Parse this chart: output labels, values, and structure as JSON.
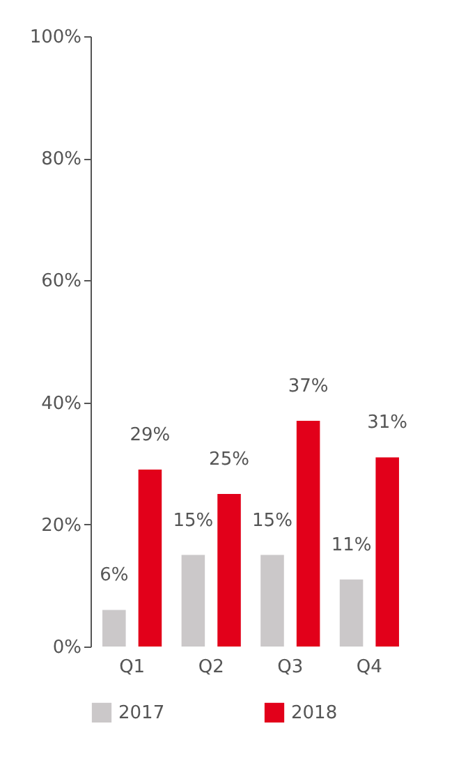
{
  "chart_data": {
    "type": "bar",
    "categories": [
      "Q1",
      "Q2",
      "Q3",
      "Q4"
    ],
    "series": [
      {
        "name": "2017",
        "color": "#cbc8c9",
        "values": [
          6,
          15,
          15,
          11
        ],
        "value_labels": [
          "6%",
          "15%",
          "15%",
          "11%"
        ]
      },
      {
        "name": "2018",
        "color": "#e2001a",
        "values": [
          29,
          25,
          37,
          31
        ],
        "value_labels": [
          "29%",
          "25%",
          "37%",
          "31%"
        ]
      }
    ],
    "ylim": [
      0,
      100
    ],
    "yticks": [
      {
        "value": 0,
        "label": "0%"
      },
      {
        "value": 20,
        "label": "20%"
      },
      {
        "value": 40,
        "label": "40%"
      },
      {
        "value": 60,
        "label": "60%"
      },
      {
        "value": 80,
        "label": "80%"
      },
      {
        "value": 100,
        "label": "100%"
      }
    ],
    "legend": "bottom"
  }
}
